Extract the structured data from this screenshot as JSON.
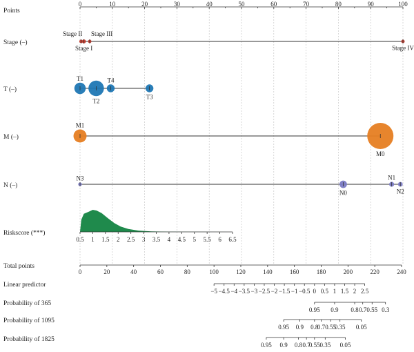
{
  "chart_data": {
    "type": "nomogram",
    "points": {
      "label": "Points",
      "min": 0,
      "max": 100,
      "ticks": [
        0,
        10,
        20,
        30,
        40,
        50,
        60,
        70,
        80,
        90,
        100
      ]
    },
    "stage": {
      "label": "Stage (–)",
      "color": "#c0392b",
      "levels": [
        {
          "name": "Stage II",
          "points": 0.3,
          "size": 0.1,
          "label_pos": "above-left"
        },
        {
          "name": "Stage I",
          "points": 1.2,
          "size": 0.16,
          "label_pos": "below"
        },
        {
          "name": "Stage III",
          "points": 3.0,
          "size": 0.1,
          "label_pos": "above-right"
        },
        {
          "name": "Stage IV",
          "points": 100,
          "size": 0.07,
          "label_pos": "below"
        }
      ]
    },
    "t": {
      "label": "T (–)",
      "color": "#1f77b4",
      "levels": [
        {
          "name": "T1",
          "points": 0,
          "size": 0.55,
          "label_pos": "above"
        },
        {
          "name": "T2",
          "points": 5,
          "size": 0.75,
          "label_pos": "below"
        },
        {
          "name": "T4",
          "points": 9.5,
          "size": 0.38,
          "label_pos": "above"
        },
        {
          "name": "T3",
          "points": 21.5,
          "size": 0.38,
          "label_pos": "below"
        }
      ]
    },
    "m": {
      "label": "M (–)",
      "color": "#e67e22",
      "levels": [
        {
          "name": "M1",
          "points": 0,
          "size": 0.5,
          "label_pos": "above"
        },
        {
          "name": "M0",
          "points": 93,
          "size": 1.0,
          "label_pos": "below"
        }
      ]
    },
    "n": {
      "label": "N (–)",
      "color": "#7b7bc4",
      "levels": [
        {
          "name": "N3",
          "points": 0,
          "size": 0.22,
          "label_pos": "above"
        },
        {
          "name": "N0",
          "points": 81.5,
          "size": 0.45,
          "label_pos": "below"
        },
        {
          "name": "N1",
          "points": 96.5,
          "size": 0.3,
          "label_pos": "above"
        },
        {
          "name": "N2",
          "points": 99.2,
          "size": 0.28,
          "label_pos": "below"
        }
      ]
    },
    "riskscore": {
      "label": "Riskscore (***)",
      "color": "#1f8a4c",
      "min": 0.5,
      "max": 6.5,
      "ticks": [
        "0.5",
        "1",
        "1.5",
        "2",
        "2.5",
        "3",
        "3.5",
        "4",
        "4.5",
        "5",
        "5.5",
        "6",
        "6.5"
      ],
      "density": [
        [
          0.5,
          0.0
        ],
        [
          0.55,
          0.55
        ],
        [
          0.65,
          0.82
        ],
        [
          0.85,
          0.92
        ],
        [
          1.0,
          1.0
        ],
        [
          1.15,
          0.97
        ],
        [
          1.35,
          0.85
        ],
        [
          1.6,
          0.62
        ],
        [
          1.85,
          0.4
        ],
        [
          2.1,
          0.24
        ],
        [
          2.4,
          0.13
        ],
        [
          2.8,
          0.06
        ],
        [
          3.3,
          0.025
        ],
        [
          4.0,
          0.01
        ],
        [
          5.0,
          0.004
        ],
        [
          6.5,
          0.0
        ]
      ]
    },
    "total_points": {
      "label": "Total points",
      "min": 0,
      "max": 240,
      "ticks": [
        "0",
        "20",
        "40",
        "60",
        "80",
        "100",
        "120",
        "140",
        "160",
        "180",
        "200",
        "220",
        "240"
      ]
    },
    "linear_predictor": {
      "label": "Linear predictor",
      "ticks": [
        "−5",
        "−4.5",
        "−4",
        "−3.5",
        "−3",
        "−2.5",
        "−2",
        "−1.5",
        "−1",
        "−0.5",
        "0",
        "0.5",
        "1",
        "1.5",
        "2",
        "2.5"
      ],
      "total_at_ticks": [
        100,
        107.5,
        115,
        122.5,
        130,
        137.5,
        145,
        152.5,
        160,
        167.5,
        175,
        182.5,
        190,
        197.5,
        205,
        212.5
      ]
    },
    "prob_365": {
      "label": "Probability of 365",
      "ticks": [
        "0.95",
        "0.9",
        "0.8",
        "0.7",
        "0.55",
        "0.3"
      ],
      "total_at_ticks": [
        175,
        190,
        205,
        211,
        218,
        228
      ]
    },
    "prob_1095": {
      "label": "Probability of 1095",
      "ticks": [
        "0.95",
        "0.9",
        "0.8",
        "0.7",
        "0.55",
        "0.35",
        "0.05"
      ],
      "total_at_ticks": [
        152,
        164,
        175,
        180,
        187,
        194,
        210
      ]
    },
    "prob_1825": {
      "label": "Probability of 1825",
      "ticks": [
        "0.95",
        "0.9",
        "0.8",
        "0.7",
        "0.55",
        "0.35",
        "0.05"
      ],
      "total_at_ticks": [
        139,
        152,
        163,
        169,
        175,
        183,
        198
      ]
    }
  }
}
